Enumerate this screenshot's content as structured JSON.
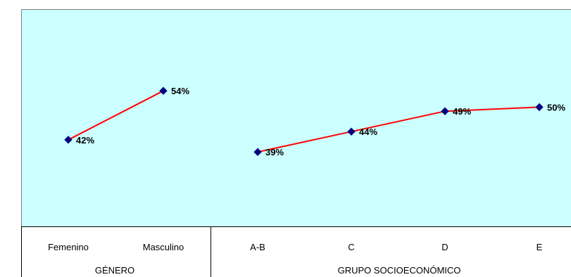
{
  "chart_data": {
    "type": "line",
    "title": "",
    "ylabel": "",
    "ylim": [
      0,
      100
    ],
    "grid": false,
    "plot_background": "#ccffff",
    "line_color": "#ff0000",
    "marker_color": "#000080",
    "groups": [
      {
        "name": "GÉNERO",
        "categories": [
          "Femenino",
          "Masculino"
        ],
        "values": [
          42,
          54
        ],
        "labels": [
          "42%",
          "54%"
        ]
      },
      {
        "name": "GRUPO SOCIOECONÓMICO",
        "categories": [
          "A-B",
          "C",
          "D",
          "E"
        ],
        "values": [
          39,
          44,
          49,
          50
        ],
        "labels": [
          "39%",
          "44%",
          "49%",
          "50%"
        ]
      }
    ]
  }
}
